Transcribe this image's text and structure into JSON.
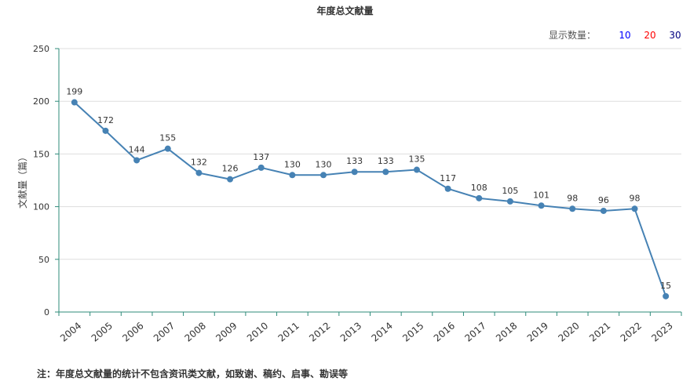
{
  "header": {
    "title": "年度总文献量",
    "display_label": "显示数量：",
    "options": [
      {
        "label": "10",
        "color": "#0000ff"
      },
      {
        "label": "20",
        "color": "#ff0000"
      },
      {
        "label": "30",
        "color": "#000080"
      }
    ]
  },
  "footer": {
    "note": "注：年度总文献量的统计不包含资讯类文献，如致谢、稿约、启事、勘误等"
  },
  "chart_data": {
    "type": "line",
    "title": "年度总文献量",
    "xlabel": "",
    "ylabel": "文献量（篇）",
    "ylim": [
      0,
      250
    ],
    "yticks": [
      0,
      50,
      100,
      150,
      200,
      250
    ],
    "grid": true,
    "line_color": "#4682b4",
    "categories": [
      "2004",
      "2005",
      "2006",
      "2007",
      "2008",
      "2009",
      "2010",
      "2011",
      "2012",
      "2013",
      "2014",
      "2015",
      "2016",
      "2017",
      "2018",
      "2019",
      "2020",
      "2021",
      "2022",
      "2023"
    ],
    "series": [
      {
        "values": [
          199,
          172,
          144,
          155,
          132,
          126,
          137,
          130,
          130,
          133,
          133,
          135,
          117,
          108,
          105,
          101,
          98,
          96,
          98,
          15
        ]
      }
    ]
  }
}
